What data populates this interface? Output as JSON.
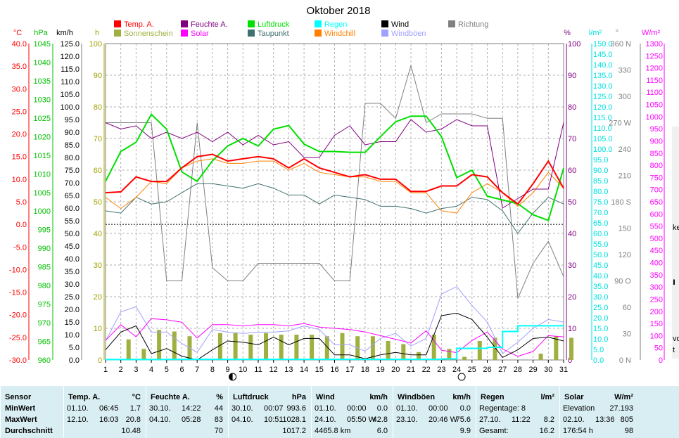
{
  "chart_data": {
    "type": "line",
    "title": "Oktober 2018",
    "x": [
      1,
      2,
      3,
      4,
      5,
      6,
      7,
      8,
      9,
      10,
      11,
      12,
      13,
      14,
      15,
      16,
      17,
      18,
      19,
      20,
      21,
      22,
      23,
      24,
      25,
      26,
      27,
      28,
      29,
      30,
      31
    ],
    "xlim": [
      1,
      31
    ],
    "axes": [
      {
        "id": "temp",
        "label": "°C",
        "ylim": [
          -30,
          40
        ],
        "ticks": [
          -30,
          -25,
          -20,
          -15,
          -10,
          -5,
          0,
          5,
          10,
          15,
          20,
          25,
          30,
          35,
          40
        ],
        "color": "#ff0000"
      },
      {
        "id": "press",
        "label": "hPa",
        "ylim": [
          960,
          1045
        ],
        "ticks": [
          960,
          965,
          970,
          975,
          980,
          985,
          990,
          995,
          1000,
          1005,
          1010,
          1015,
          1020,
          1025,
          1030,
          1035,
          1040,
          1045
        ],
        "color": "#00c000"
      },
      {
        "id": "wind",
        "label": "km/h",
        "ylim": [
          0,
          125
        ],
        "ticks": [
          0,
          5,
          10,
          15,
          20,
          25,
          30,
          35,
          40,
          45,
          50,
          55,
          60,
          65,
          70,
          75,
          80,
          85,
          90,
          95,
          100,
          105,
          110,
          115,
          120,
          125
        ],
        "color": "#000000"
      },
      {
        "id": "sun",
        "label": "h",
        "ylim": [
          0,
          100
        ],
        "ticks": [
          0,
          10,
          20,
          30,
          40,
          50,
          60,
          70,
          80,
          90,
          100
        ],
        "color": "#a0a000"
      },
      {
        "id": "hum",
        "label": "%",
        "ylim": [
          0,
          100
        ],
        "ticks": [
          0,
          10,
          20,
          30,
          40,
          50,
          60,
          70,
          80,
          90,
          100
        ],
        "color": "#800080"
      },
      {
        "id": "rain",
        "label": "l/m²",
        "ylim": [
          0,
          150
        ],
        "ticks": [
          0,
          5,
          10,
          15,
          20,
          25,
          30,
          35,
          40,
          45,
          50,
          55,
          60,
          65,
          70,
          75,
          80,
          85,
          90,
          95,
          100,
          105,
          110,
          115,
          120,
          125,
          130,
          135,
          140,
          145,
          150
        ],
        "color": "#00e0e0"
      },
      {
        "id": "dir",
        "label": "°",
        "ylim": [
          0,
          360
        ],
        "ticks": [
          0,
          30,
          60,
          90,
          120,
          150,
          180,
          210,
          240,
          270,
          300,
          330,
          360
        ],
        "tick_labels": [
          "0 N",
          "30",
          "60",
          "90 O",
          "120",
          "150",
          "180 S",
          "210",
          "240",
          "270 W",
          "300",
          "330",
          "360 N"
        ],
        "color": "#808080"
      },
      {
        "id": "solar",
        "label": "W/m²",
        "ylim": [
          0,
          1300
        ],
        "ticks": [
          0,
          50,
          100,
          150,
          200,
          250,
          300,
          350,
          400,
          450,
          500,
          550,
          600,
          650,
          700,
          750,
          800,
          850,
          900,
          950,
          1000,
          1050,
          1100,
          1150,
          1200,
          1250,
          1300
        ],
        "color": "#ff00ff"
      }
    ],
    "legend": [
      {
        "name": "Temp. A.",
        "color": "#ff0000"
      },
      {
        "name": "Sonnenschein",
        "color": "#a0b040"
      },
      {
        "name": "Feuchte A.",
        "color": "#800080"
      },
      {
        "name": "Solar",
        "color": "#ff00ff"
      },
      {
        "name": "Luftdruck",
        "color": "#00e000"
      },
      {
        "name": "Taupunkt",
        "color": "#407070"
      },
      {
        "name": "Regen",
        "color": "#00ffff"
      },
      {
        "name": "Windchill",
        "color": "#ff8000"
      },
      {
        "name": "Wind",
        "color": "#000000"
      },
      {
        "name": "Windböen",
        "color": "#a0a0ff"
      },
      {
        "name": "Richtung",
        "color": "#808080"
      }
    ],
    "series": [
      {
        "name": "Temp. A.",
        "axis": "temp",
        "color": "#ff0000",
        "width": 2,
        "values": [
          7.0,
          7.2,
          10.5,
          9.5,
          9.5,
          12.5,
          15.0,
          15.5,
          14.0,
          14.5,
          15.0,
          14.5,
          12.5,
          14.5,
          12.5,
          11.5,
          10.5,
          11.0,
          10.0,
          10.0,
          7.3,
          7.3,
          8.5,
          8.5,
          11.0,
          10.5,
          7.0,
          4.5,
          9.0,
          14.0,
          8.0
        ]
      },
      {
        "name": "Windchill",
        "axis": "temp",
        "color": "#ff8000",
        "width": 1,
        "values": [
          6.0,
          3.5,
          6.0,
          9.5,
          9.0,
          12.5,
          14.0,
          14.5,
          13.5,
          13.5,
          14.0,
          14.0,
          12.0,
          13.5,
          11.5,
          11.0,
          10.5,
          10.5,
          9.5,
          9.5,
          7.0,
          7.0,
          3.0,
          2.5,
          7.0,
          9.0,
          7.0,
          4.0,
          7.0,
          11.5,
          8.0
        ]
      },
      {
        "name": "Taupunkt",
        "axis": "temp",
        "color": "#407070",
        "width": 1,
        "values": [
          3.0,
          2.5,
          6.0,
          4.5,
          5.0,
          7.0,
          9.0,
          9.0,
          8.5,
          8.0,
          9.0,
          8.0,
          6.5,
          6.5,
          4.5,
          6.5,
          6.0,
          5.5,
          4.0,
          4.0,
          3.5,
          2.5,
          3.5,
          4.0,
          6.0,
          5.5,
          3.0,
          -2.0,
          2.5,
          6.0,
          4.5
        ]
      },
      {
        "name": "Luftdruck",
        "axis": "press",
        "color": "#00e000",
        "width": 2,
        "values": [
          1008.0,
          1016.0,
          1018.5,
          1026.0,
          1022.0,
          1010.5,
          1008.0,
          1013.5,
          1017.5,
          1019.5,
          1017.5,
          1022.0,
          1023.0,
          1018.0,
          1016.0,
          1016.0,
          1015.8,
          1015.8,
          1020.0,
          1024.0,
          1025.5,
          1025.5,
          1020.0,
          1009.0,
          1011.0,
          1004.0,
          1003.0,
          1002.0,
          999.0,
          997.5,
          1011.5
        ]
      },
      {
        "name": "Feuchte A.",
        "axis": "hum",
        "color": "#800080",
        "width": 1,
        "values": [
          75,
          73,
          74,
          70,
          72,
          70,
          72,
          69,
          72,
          68,
          71,
          68,
          69,
          64,
          64,
          71,
          74,
          68,
          69,
          69,
          76,
          72,
          73,
          76,
          74,
          74,
          48,
          51,
          54,
          54,
          75
        ]
      },
      {
        "name": "Wind",
        "axis": "wind",
        "color": "#000000",
        "width": 1,
        "values": [
          4.0,
          11.0,
          13.5,
          2.5,
          4.5,
          1.5,
          0.0,
          4.0,
          7.5,
          7.0,
          6.0,
          9.0,
          6.0,
          8.5,
          8.5,
          2.0,
          2.0,
          0.5,
          2.0,
          3.0,
          2.0,
          2.0,
          17.5,
          18.5,
          16.0,
          9.0,
          1.0,
          4.0,
          8.5,
          9.0,
          7.5
        ]
      },
      {
        "name": "Windböen",
        "axis": "wind",
        "color": "#a0a0ff",
        "width": 1,
        "values": [
          7.5,
          19.0,
          21.0,
          11.0,
          11.0,
          6.5,
          3.0,
          12.0,
          11.0,
          10.5,
          11.0,
          11.0,
          11.5,
          13.5,
          12.0,
          6.0,
          6.0,
          3.5,
          8.5,
          10.5,
          5.5,
          8.5,
          26.0,
          29.0,
          21.5,
          15.0,
          2.5,
          7.0,
          12.5,
          16.0,
          15.0
        ]
      },
      {
        "name": "Solar",
        "axis": "solar",
        "color": "#ff00ff",
        "width": 1,
        "values": [
          80,
          145,
          95,
          170,
          165,
          155,
          90,
          145,
          145,
          140,
          145,
          145,
          140,
          150,
          135,
          130,
          125,
          115,
          100,
          85,
          70,
          120,
          40,
          30,
          80,
          115,
          45,
          15,
          35,
          100,
          95
        ]
      },
      {
        "name": "Regen",
        "axis": "rain",
        "color": "#00ffff",
        "width": 2,
        "step": true,
        "values": [
          0.2,
          0.2,
          0.2,
          0.2,
          0.3,
          0.3,
          0.3,
          0.3,
          0.3,
          0.3,
          0.3,
          0.3,
          0.3,
          0.3,
          0.3,
          0.3,
          0.3,
          0.3,
          0.3,
          0.3,
          0.3,
          0.3,
          0.5,
          5.5,
          5.5,
          6.0,
          13.5,
          16.2,
          16.2,
          16.2,
          16.2
        ]
      },
      {
        "name": "Richtung",
        "axis": "dir",
        "color": "#808080",
        "width": 1,
        "values": [
          270,
          270,
          270,
          270,
          90,
          90,
          270,
          105,
          90,
          90,
          110,
          110,
          110,
          110,
          110,
          90,
          90,
          292,
          292,
          275,
          335,
          270,
          280,
          280,
          280,
          275,
          275,
          70,
          110,
          135,
          95
        ]
      }
    ],
    "bars": {
      "name": "Sonnenschein",
      "axis": "sun",
      "color": "#a0b040",
      "values": [
        0,
        6.5,
        3.5,
        9.5,
        9.0,
        7.5,
        0,
        8.5,
        8.5,
        8.0,
        8.5,
        8.0,
        8.0,
        8.0,
        7.5,
        8.5,
        7.5,
        7.5,
        6.0,
        5.0,
        2.5,
        8.0,
        3.5,
        1.0,
        6.0,
        7.0,
        0,
        0,
        2.0,
        7.5,
        7.0
      ]
    },
    "reference_line": {
      "axis": "temp",
      "value": 0
    },
    "moon_phases": [
      {
        "day": 9,
        "phase": "new"
      },
      {
        "day": 24,
        "phase": "full"
      }
    ],
    "grid": true
  },
  "stats": {
    "columns": [
      {
        "title": "Sensor",
        "unit": "",
        "rows": [
          "MinWert",
          "MaxWert",
          "Durchschnitt"
        ]
      },
      {
        "title": "Temp. A.",
        "unit": "°C",
        "rows": [
          {
            "date": "01.10.",
            "time": "06:45",
            "val": "1.7"
          },
          {
            "date": "12.10.",
            "time": "16:03",
            "val": "20.8"
          },
          {
            "date": "",
            "time": "",
            "val": "10.48"
          }
        ]
      },
      {
        "title": "Feuchte A.",
        "unit": "%",
        "rows": [
          {
            "date": "30.10.",
            "time": "14:22",
            "val": "44"
          },
          {
            "date": "04.10.",
            "time": "05:28",
            "val": "83"
          },
          {
            "date": "",
            "time": "",
            "val": "70"
          }
        ]
      },
      {
        "title": "Luftdruck",
        "unit": "hPa",
        "rows": [
          {
            "date": "30.10.",
            "time": "00:07",
            "val": "993.6"
          },
          {
            "date": "04.10.",
            "time": "10:51",
            "val": "1028.1"
          },
          {
            "date": "",
            "time": "",
            "val": "1017.2"
          }
        ]
      },
      {
        "title": "Wind",
        "unit": "km/h",
        "rows": [
          {
            "date": "01.10.",
            "time": "00:00",
            "val": "0.0"
          },
          {
            "date": "24.10.",
            "time": "05:50 W",
            "val": "42.8"
          },
          {
            "date": "4465.8 km",
            "time": "",
            "val": "6.0"
          }
        ]
      },
      {
        "title": "Windböen",
        "unit": "km/h",
        "rows": [
          {
            "date": "01.10.",
            "time": "00:00",
            "val": "0.0"
          },
          {
            "date": "23.10.",
            "time": "20:46 W",
            "val": "75.6"
          },
          {
            "date": "",
            "time": "",
            "val": "9.9"
          }
        ]
      },
      {
        "title": "Regen",
        "unit": "l/m²",
        "rows": [
          {
            "date": "Regentage: 8",
            "time": "",
            "val": ""
          },
          {
            "date": "27.10.",
            "time": "11:22",
            "val": "8.2"
          },
          {
            "date": "Gesamt:",
            "time": "",
            "val": "16.2"
          }
        ]
      },
      {
        "title": "Solar",
        "unit": "W/m²",
        "rows": [
          {
            "date": "Elevation",
            "time": "",
            "val": "27.193"
          },
          {
            "date": "02.10.",
            "time": "13:36",
            "val": "805"
          },
          {
            "date": "176:54 h",
            "time": "",
            "val": "98"
          }
        ]
      }
    ]
  },
  "edge_fragments": [
    "ke",
    "ı",
    "vo",
    "t"
  ]
}
